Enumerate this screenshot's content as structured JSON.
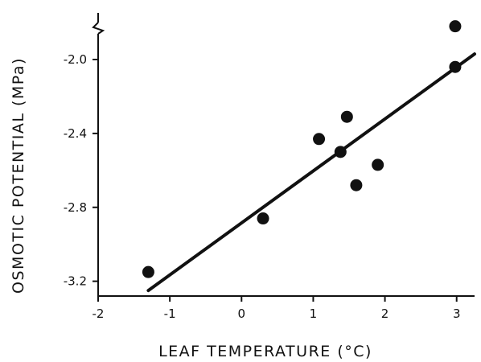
{
  "chart_data": {
    "type": "scatter",
    "title": "",
    "xlabel": "LEAF TEMPERATURE (°C)",
    "ylabel": "OSMOTIC POTENTIAL (MPa)",
    "xlim": [
      -2,
      3.25
    ],
    "ylim": [
      -3.28,
      -1.73
    ],
    "x_ticks": [
      -2,
      -1,
      0,
      1,
      2,
      3
    ],
    "x_tick_labels": [
      "-2",
      "-1",
      "0",
      "1",
      "2",
      "3"
    ],
    "y_ticks": [
      -2.0,
      -2.4,
      -2.8,
      -3.2
    ],
    "y_tick_labels": [
      "-2.0",
      "-2.4",
      "-2.8",
      "-3.2"
    ],
    "y_axis_break": true,
    "grid": false,
    "points": [
      {
        "x": -1.3,
        "y": -3.15
      },
      {
        "x": 0.3,
        "y": -2.86
      },
      {
        "x": 1.08,
        "y": -2.43
      },
      {
        "x": 1.38,
        "y": -2.5
      },
      {
        "x": 1.47,
        "y": -2.31
      },
      {
        "x": 1.6,
        "y": -2.68
      },
      {
        "x": 1.9,
        "y": -2.57
      },
      {
        "x": 2.98,
        "y": -1.82
      },
      {
        "x": 2.98,
        "y": -2.04
      }
    ],
    "fit_line": {
      "x": [
        -1.3,
        3.25
      ],
      "y": [
        -3.25,
        -1.97
      ]
    },
    "colors": {
      "ink": "#111111",
      "background": "#ffffff"
    }
  }
}
